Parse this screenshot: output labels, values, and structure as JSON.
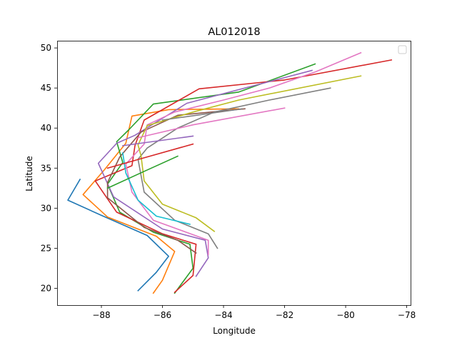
{
  "chart_data": {
    "type": "line",
    "title": "AL012018",
    "xlabel": "Longitude",
    "ylabel": "Latitude",
    "xlim": [
      -89.45,
      -77.85
    ],
    "ylim": [
      17.9,
      50.9
    ],
    "xticks": [
      -88,
      -86,
      -84,
      -82,
      -80,
      -78
    ],
    "yticks": [
      20,
      25,
      30,
      35,
      40,
      45,
      50
    ],
    "xtick_labels": [
      "−88",
      "−86",
      "−84",
      "−82",
      "−80",
      "−78"
    ],
    "ytick_labels": [
      "20",
      "25",
      "30",
      "35",
      "40",
      "45",
      "50"
    ],
    "grid": false,
    "legend": "top-right, empty",
    "series": [
      {
        "color": "#1f77b4",
        "points": [
          [
            -86.8,
            19.7
          ],
          [
            -86.2,
            22.0
          ],
          [
            -85.8,
            24.0
          ],
          [
            -86.5,
            26.6
          ],
          [
            -88.0,
            29.1
          ],
          [
            -89.1,
            31.0
          ],
          [
            -88.7,
            33.6
          ]
        ]
      },
      {
        "color": "#ff7f0e",
        "points": [
          [
            -86.3,
            19.4
          ],
          [
            -86.0,
            21.0
          ],
          [
            -85.6,
            24.6
          ],
          [
            -86.2,
            26.5
          ],
          [
            -87.8,
            28.9
          ],
          [
            -88.6,
            31.7
          ],
          [
            -87.9,
            34.8
          ],
          [
            -87.2,
            38.1
          ],
          [
            -87.0,
            41.5
          ],
          [
            -85.8,
            42.3
          ],
          [
            -83.5,
            42.4
          ]
        ]
      },
      {
        "color": "#2ca02c",
        "points": [
          [
            -85.6,
            19.4
          ],
          [
            -85.0,
            22.5
          ],
          [
            -85.1,
            25.5
          ],
          [
            -86.3,
            27.0
          ],
          [
            -87.4,
            29.5
          ],
          [
            -87.8,
            33.0
          ],
          [
            -87.3,
            35.7
          ],
          [
            -87.5,
            38.3
          ],
          [
            -87.1,
            39.8
          ],
          [
            -86.3,
            43.0
          ],
          [
            -83.5,
            44.5
          ],
          [
            -81.0,
            48.0
          ]
        ]
      },
      {
        "color": "#d62728",
        "points": [
          [
            -85.6,
            19.5
          ],
          [
            -85.0,
            21.6
          ],
          [
            -84.9,
            25.5
          ],
          [
            -86.0,
            26.8
          ],
          [
            -87.5,
            29.5
          ],
          [
            -88.2,
            33.4
          ],
          [
            -87.0,
            35.3
          ],
          [
            -86.9,
            37.8
          ],
          [
            -86.6,
            41.0
          ],
          [
            -84.8,
            44.9
          ],
          [
            -82.0,
            46.0
          ],
          [
            -78.5,
            48.5
          ]
        ]
      },
      {
        "color": "#9467bd",
        "points": [
          [
            -84.9,
            21.5
          ],
          [
            -84.5,
            23.8
          ],
          [
            -84.6,
            26.0
          ],
          [
            -86.0,
            27.4
          ],
          [
            -87.6,
            31.4
          ],
          [
            -88.1,
            35.6
          ],
          [
            -87.5,
            38.1
          ],
          [
            -86.9,
            39.1
          ],
          [
            -85.2,
            43.1
          ],
          [
            -81.1,
            47.2
          ]
        ]
      },
      {
        "color": "#8c564b",
        "points": [
          [
            -84.9,
            24.4
          ],
          [
            -85.5,
            26.0
          ],
          [
            -86.6,
            27.6
          ],
          [
            -87.8,
            31.3
          ],
          [
            -87.8,
            33.2
          ],
          [
            -87.4,
            36.4
          ],
          [
            -86.7,
            39.5
          ],
          [
            -85.5,
            41.6
          ],
          [
            -83.3,
            42.4
          ]
        ]
      },
      {
        "color": "#e377c2",
        "points": [
          [
            -84.5,
            24.2
          ],
          [
            -84.5,
            26.0
          ],
          [
            -86.3,
            28.5
          ],
          [
            -87.0,
            32.0
          ],
          [
            -87.2,
            35.5
          ],
          [
            -86.6,
            38.0
          ],
          [
            -86.5,
            40.4
          ],
          [
            -85.6,
            42.0
          ],
          [
            -84.0,
            43.5
          ],
          [
            -82.5,
            45.0
          ],
          [
            -81.0,
            47.0
          ],
          [
            -79.5,
            49.4
          ]
        ]
      },
      {
        "color": "#7f7f7f",
        "points": [
          [
            -84.2,
            25.0
          ],
          [
            -84.5,
            26.8
          ],
          [
            -85.6,
            28.5
          ],
          [
            -86.6,
            32.0
          ],
          [
            -86.8,
            36.1
          ],
          [
            -86.5,
            37.5
          ],
          [
            -85.5,
            40.0
          ],
          [
            -84.3,
            42.0
          ],
          [
            -82.5,
            43.5
          ],
          [
            -80.5,
            45.0
          ]
        ]
      },
      {
        "color": "#bcbd22",
        "points": [
          [
            -84.3,
            27.1
          ],
          [
            -84.9,
            28.8
          ],
          [
            -86.0,
            30.5
          ],
          [
            -86.6,
            33.4
          ],
          [
            -86.7,
            36.5
          ],
          [
            -86.8,
            37.9
          ],
          [
            -86.5,
            40.3
          ],
          [
            -85.0,
            42.0
          ],
          [
            -83.5,
            43.5
          ],
          [
            -79.5,
            46.5
          ]
        ]
      },
      {
        "color": "#17becf",
        "points": [
          [
            -85.1,
            28.0
          ],
          [
            -86.2,
            29.0
          ],
          [
            -86.8,
            31.0
          ],
          [
            -87.0,
            32.7
          ],
          [
            -87.2,
            34.4
          ],
          [
            -87.3,
            36.9
          ]
        ]
      },
      {
        "color": "#2ca02c",
        "points": [
          [
            -85.5,
            36.5
          ],
          [
            -86.6,
            34.6
          ],
          [
            -87.8,
            32.5
          ]
        ]
      },
      {
        "color": "#d62728",
        "points": [
          [
            -85.0,
            38.0
          ],
          [
            -86.5,
            36.4
          ],
          [
            -87.8,
            35.0
          ]
        ]
      },
      {
        "color": "#9467bd",
        "points": [
          [
            -85.0,
            39.0
          ],
          [
            -87.3,
            37.8
          ]
        ]
      },
      {
        "color": "#e377c2",
        "points": [
          [
            -82.0,
            42.5
          ],
          [
            -85.0,
            40.4
          ],
          [
            -86.8,
            38.8
          ]
        ]
      },
      {
        "color": "#7f7f7f",
        "points": [
          [
            -83.4,
            42.4
          ],
          [
            -86.0,
            41.0
          ]
        ]
      }
    ]
  }
}
